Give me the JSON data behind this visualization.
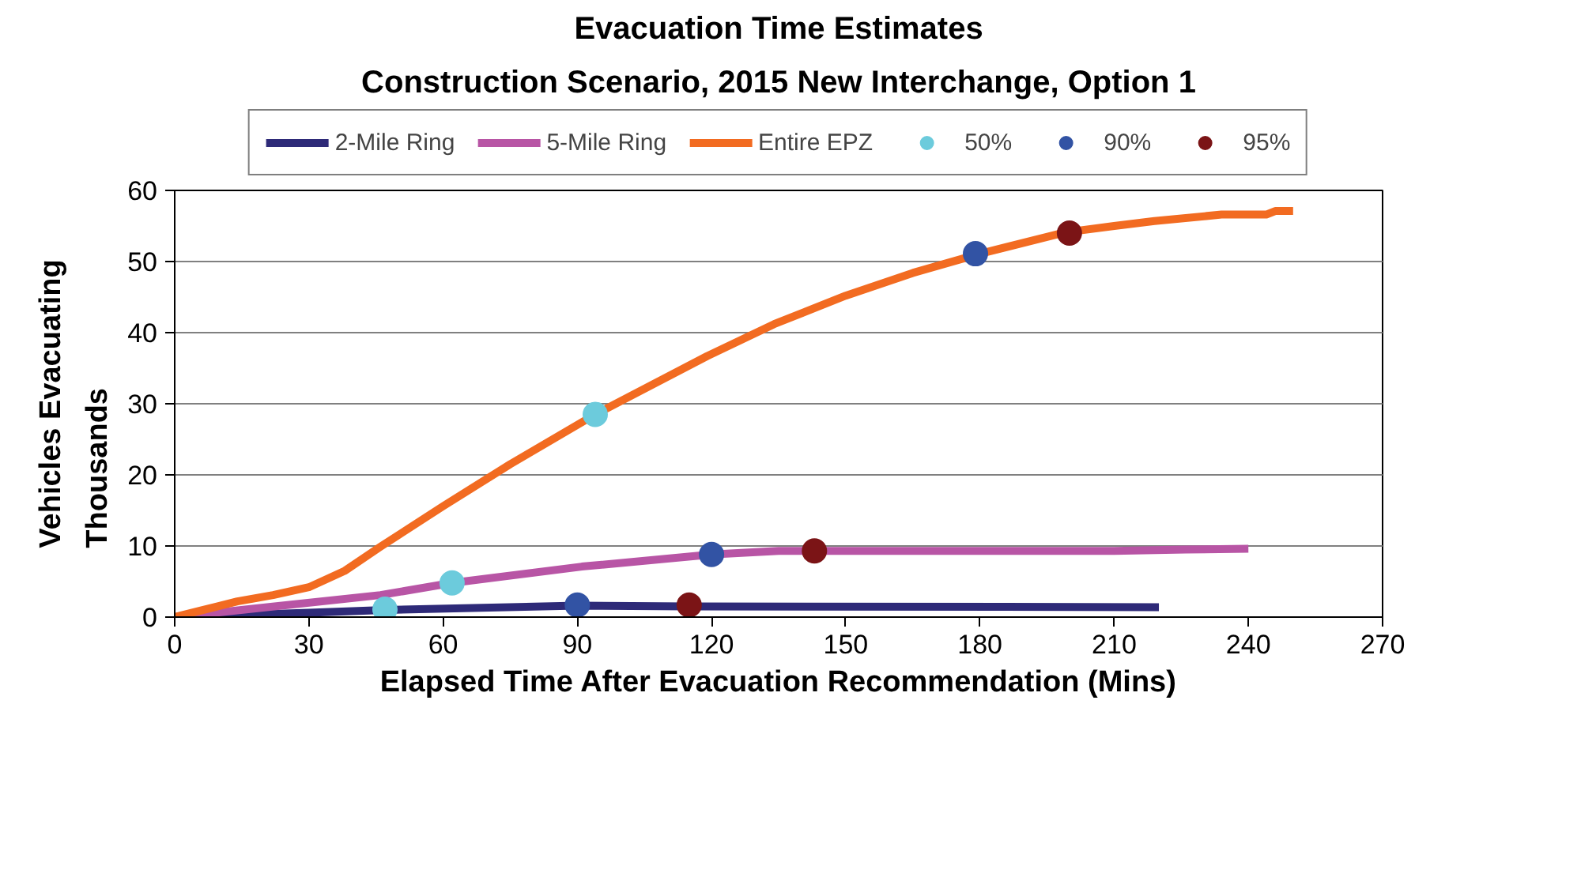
{
  "chart_data": {
    "type": "line",
    "title": "Evacuation Time Estimates",
    "subtitle": "Construction Scenario, 2015 New Interchange, Option 1",
    "xlabel": "Elapsed Time After Evacuation Recommendation (Mins)",
    "ylabel": "Vehicles Evacuating\nThousands",
    "xlim": [
      0,
      270
    ],
    "xticks": [
      0,
      30,
      60,
      90,
      120,
      150,
      180,
      210,
      240,
      270
    ],
    "ylim": [
      0,
      60
    ],
    "yticks": [
      0,
      10,
      20,
      30,
      40,
      50,
      60
    ],
    "grid": "y",
    "legend": "top",
    "marker": "none",
    "line_style": "solid",
    "series": [
      {
        "name": "2-Mile Ring",
        "color": "#2e2a78",
        "x": [
          0,
          30,
          47,
          90,
          115,
          220
        ],
        "values": [
          0,
          0.6,
          1.0,
          1.6,
          1.5,
          1.4
        ]
      },
      {
        "name": "5-Mile Ring",
        "color": "#b855a5",
        "x": [
          0,
          46,
          62,
          91,
          120,
          135,
          210,
          226,
          240
        ],
        "values": [
          0,
          3.1,
          4.8,
          7.1,
          8.8,
          9.3,
          9.3,
          9.5,
          9.6
        ]
      },
      {
        "name": "Entire EPZ",
        "color": "#f26b21",
        "x": [
          0,
          14,
          22,
          30,
          38,
          46,
          60,
          75,
          94,
          119,
          134,
          150,
          165,
          180,
          199,
          210,
          219,
          234,
          244,
          246,
          250
        ],
        "values": [
          0,
          2.2,
          3.1,
          4.2,
          6.5,
          9.9,
          15.6,
          21.5,
          28.5,
          36.7,
          41.2,
          45.2,
          48.4,
          51.1,
          54.1,
          55,
          55.7,
          56.6,
          56.6,
          57.1,
          57.1
        ]
      },
      {
        "name": "50%",
        "type": "scatter",
        "marker": "circle",
        "color": "#6ccbdc",
        "x": [
          47,
          62,
          94
        ],
        "values": [
          1.1,
          4.8,
          28.5
        ]
      },
      {
        "name": "90%",
        "type": "scatter",
        "marker": "circle",
        "color": "#3253a4",
        "x": [
          90,
          120,
          179
        ],
        "values": [
          1.7,
          8.8,
          51.1
        ]
      },
      {
        "name": "95%",
        "type": "scatter",
        "marker": "circle",
        "color": "#7b1416",
        "x": [
          115,
          143,
          200
        ],
        "values": [
          1.7,
          9.3,
          54
        ]
      }
    ]
  }
}
